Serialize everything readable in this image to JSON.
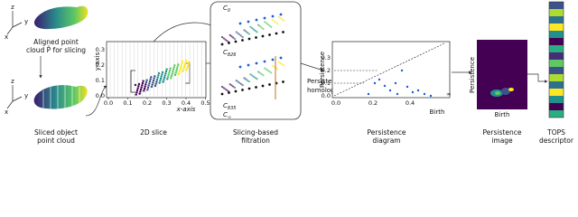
{
  "input": {
    "axes": [
      "z",
      "y",
      "x"
    ],
    "caption": [
      "Aligned point",
      "cloud P̂ for slicing"
    ]
  },
  "sliced": {
    "axes": [
      "z",
      "y",
      "x"
    ],
    "caption": [
      "Sliced object",
      "point cloud"
    ]
  },
  "slice_plot": {
    "y_label": "y-axis",
    "x_label": "x-axis",
    "yticks": [
      "0.0",
      "0.1",
      "0.2",
      "0.3"
    ],
    "xticks": [
      "0.0",
      "0.1",
      "0.2",
      "0.3",
      "0.4",
      "0.5"
    ],
    "caption": "2D slice"
  },
  "filtration": {
    "levels": [
      {
        "symbol": "C",
        "index": "0"
      },
      {
        "symbol": "C",
        "index": "826"
      },
      {
        "symbol": "C",
        "index": "835"
      },
      {
        "symbol": "C",
        "index": "∞"
      }
    ],
    "caption": [
      "Slicing-based",
      "filtration"
    ]
  },
  "homology": [
    "Persistent",
    "homology"
  ],
  "diagram": {
    "y_label": "Persistence",
    "x_label": "Birth",
    "yticks": [
      "0.0",
      "0.1",
      "0.2",
      "0.3"
    ],
    "xticks": [
      "0.0",
      "0.2",
      "0.4"
    ],
    "infinity": "∞",
    "caption": [
      "Persistence",
      "diagram"
    ]
  },
  "image": {
    "y_label": "Persistence",
    "x_label": "Birth",
    "caption": [
      "Persistence",
      "image"
    ]
  },
  "descriptor": {
    "caption": [
      "TOPS",
      "descriptor"
    ]
  }
}
